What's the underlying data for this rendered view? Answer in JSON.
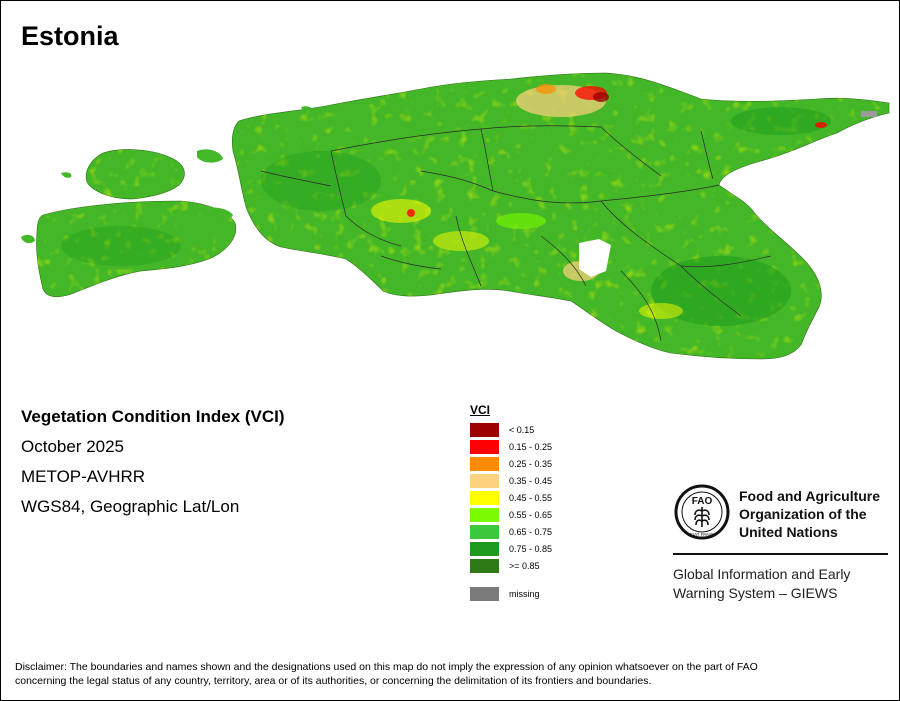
{
  "title": "Estonia",
  "info": {
    "index_name": "Vegetation Condition Index (VCI)",
    "period": "October 2025",
    "sensor": "METOP-AVHRR",
    "projection": "WGS84, Geographic Lat/Lon"
  },
  "legend": {
    "title": "VCI",
    "items": [
      {
        "label": "< 0.15",
        "color": "#9c0000"
      },
      {
        "label": "0.15 - 0.25",
        "color": "#ff0000"
      },
      {
        "label": "0.25 - 0.35",
        "color": "#ff8c00"
      },
      {
        "label": "0.35 - 0.45",
        "color": "#ffd27f"
      },
      {
        "label": "0.45 - 0.55",
        "color": "#ffff00"
      },
      {
        "label": "0.55 - 0.65",
        "color": "#7cfc00"
      },
      {
        "label": "0.65 - 0.75",
        "color": "#3cc83c"
      },
      {
        "label": "0.75 - 0.85",
        "color": "#1e9b1e"
      },
      {
        "label": ">= 0.85",
        "color": "#2d7a16"
      }
    ],
    "missing": {
      "label": "missing",
      "color": "#7a7a7a"
    }
  },
  "fao": {
    "name_line1": "Food and Agriculture",
    "name_line2": "Organization of the",
    "name_line3": "United Nations",
    "emblem_text": "FAO",
    "motto": "FIAT PANIS",
    "giews_line1": "Global Information and Early",
    "giews_line2": "Warning System – GIEWS"
  },
  "disclaimer": {
    "line1": "Disclaimer: The boundaries and names shown and the designations used on this map do not imply the expression of any opinion whatsoever on the part of FAO",
    "line2": "concerning the legal status of any country, territory, area or of its authorities, or concerning the delimitation of its frontiers and boundaries."
  }
}
